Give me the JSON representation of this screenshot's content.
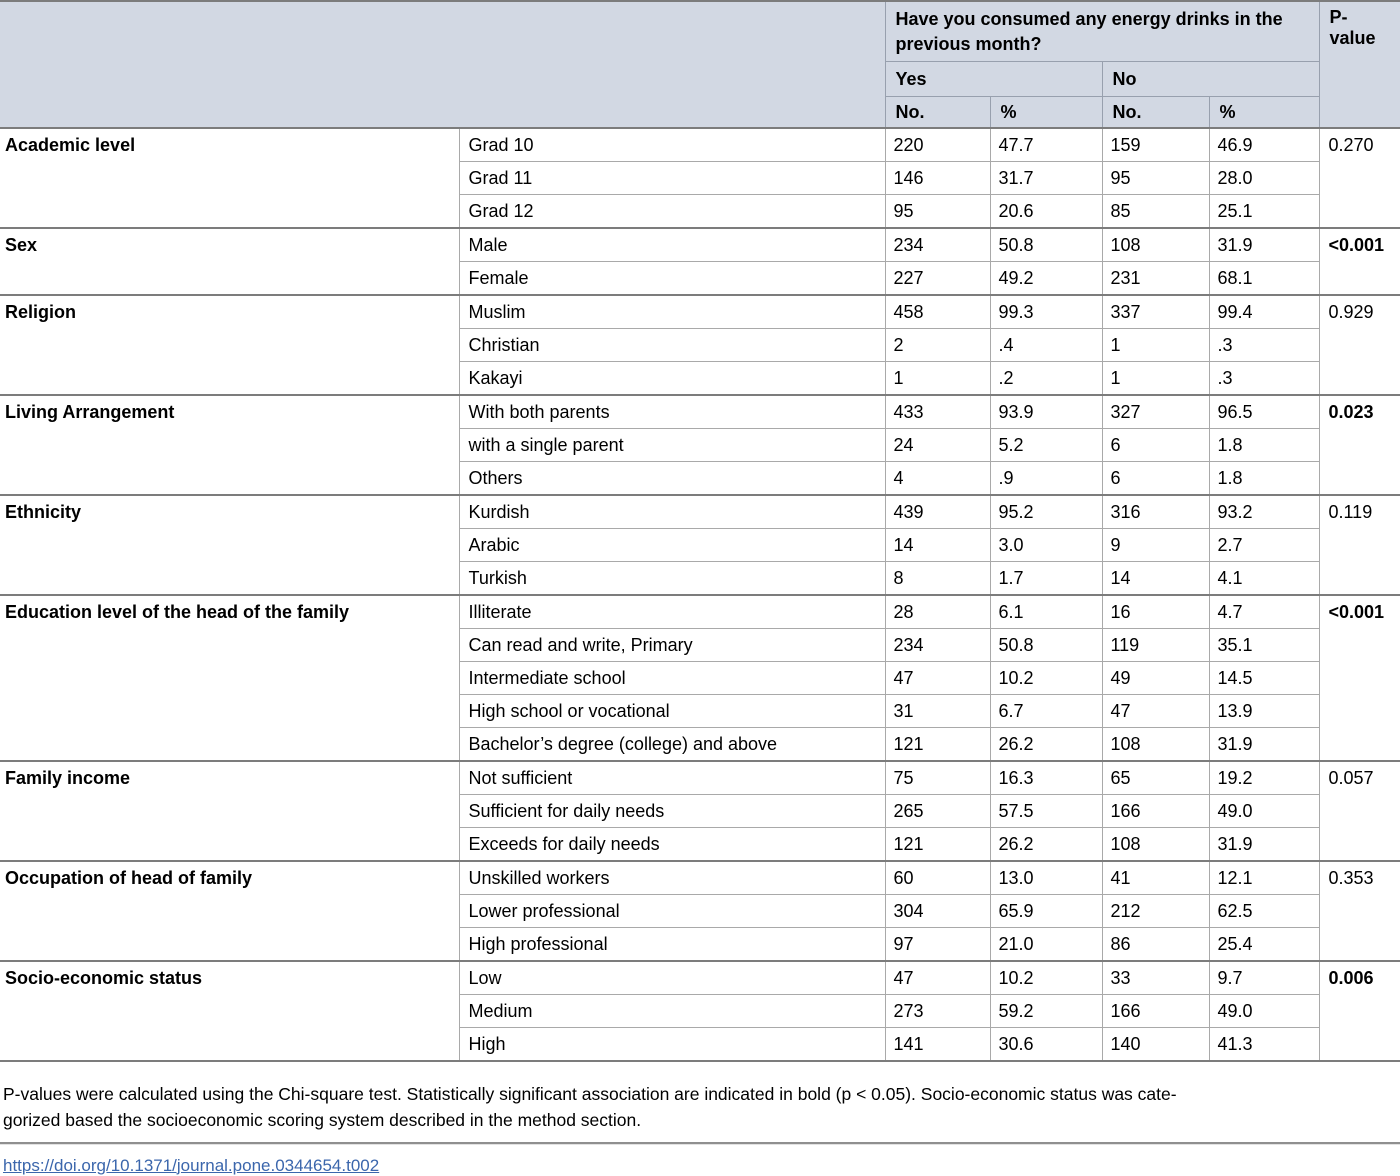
{
  "colors": {
    "header_bg": "#d2d8e3",
    "link_color": "#3b66ac"
  },
  "table": {
    "question_header": "Have you consumed any energy drinks in the previous month?",
    "pvalue_header": "P-value",
    "yes_label": "Yes",
    "no_label": "No",
    "count_label": "No.",
    "percent_label": "%",
    "groups": [
      {
        "category": "Academic level",
        "p_value": "0.270",
        "p_bold": false,
        "rows": [
          {
            "label": "Grad 10",
            "yes_n": "220",
            "yes_pct": "47.7",
            "no_n": "159",
            "no_pct": "46.9"
          },
          {
            "label": "Grad 11",
            "yes_n": "146",
            "yes_pct": "31.7",
            "no_n": "95",
            "no_pct": "28.0"
          },
          {
            "label": "Grad 12",
            "yes_n": "95",
            "yes_pct": "20.6",
            "no_n": "85",
            "no_pct": "25.1"
          }
        ]
      },
      {
        "category": "Sex",
        "p_value": "<0.001",
        "p_bold": true,
        "rows": [
          {
            "label": "Male",
            "yes_n": "234",
            "yes_pct": "50.8",
            "no_n": "108",
            "no_pct": "31.9"
          },
          {
            "label": "Female",
            "yes_n": "227",
            "yes_pct": "49.2",
            "no_n": "231",
            "no_pct": "68.1"
          }
        ]
      },
      {
        "category": "Religion",
        "p_value": "0.929",
        "p_bold": false,
        "rows": [
          {
            "label": "Muslim",
            "yes_n": "458",
            "yes_pct": "99.3",
            "no_n": "337",
            "no_pct": "99.4"
          },
          {
            "label": "Christian",
            "yes_n": "2",
            "yes_pct": ".4",
            "no_n": "1",
            "no_pct": ".3"
          },
          {
            "label": "Kakayi",
            "yes_n": "1",
            "yes_pct": ".2",
            "no_n": "1",
            "no_pct": ".3"
          }
        ]
      },
      {
        "category": "Living Arrangement",
        "p_value": "0.023",
        "p_bold": true,
        "rows": [
          {
            "label": "With both parents",
            "yes_n": "433",
            "yes_pct": "93.9",
            "no_n": "327",
            "no_pct": "96.5"
          },
          {
            "label": "with a single parent",
            "yes_n": "24",
            "yes_pct": "5.2",
            "no_n": "6",
            "no_pct": "1.8"
          },
          {
            "label": "Others",
            "yes_n": "4",
            "yes_pct": ".9",
            "no_n": "6",
            "no_pct": "1.8"
          }
        ]
      },
      {
        "category": "Ethnicity",
        "p_value": "0.119",
        "p_bold": false,
        "rows": [
          {
            "label": "Kurdish",
            "yes_n": "439",
            "yes_pct": "95.2",
            "no_n": "316",
            "no_pct": "93.2"
          },
          {
            "label": "Arabic",
            "yes_n": "14",
            "yes_pct": "3.0",
            "no_n": "9",
            "no_pct": "2.7"
          },
          {
            "label": "Turkish",
            "yes_n": "8",
            "yes_pct": "1.7",
            "no_n": "14",
            "no_pct": "4.1"
          }
        ]
      },
      {
        "category": "Education level of the head of the family",
        "p_value": "<0.001",
        "p_bold": true,
        "rows": [
          {
            "label": "Illiterate",
            "yes_n": "28",
            "yes_pct": "6.1",
            "no_n": "16",
            "no_pct": "4.7"
          },
          {
            "label": "Can read and write, Primary",
            "yes_n": "234",
            "yes_pct": "50.8",
            "no_n": "119",
            "no_pct": "35.1"
          },
          {
            "label": "Intermediate school",
            "yes_n": "47",
            "yes_pct": "10.2",
            "no_n": "49",
            "no_pct": "14.5"
          },
          {
            "label": "High school or vocational",
            "yes_n": "31",
            "yes_pct": "6.7",
            "no_n": "47",
            "no_pct": "13.9"
          },
          {
            "label": "Bachelor’s degree (college) and above",
            "yes_n": "121",
            "yes_pct": "26.2",
            "no_n": "108",
            "no_pct": "31.9"
          }
        ]
      },
      {
        "category": "Family income",
        "p_value": "0.057",
        "p_bold": false,
        "rows": [
          {
            "label": "Not sufficient",
            "yes_n": "75",
            "yes_pct": "16.3",
            "no_n": "65",
            "no_pct": "19.2"
          },
          {
            "label": "Sufficient for daily needs",
            "yes_n": "265",
            "yes_pct": "57.5",
            "no_n": "166",
            "no_pct": "49.0"
          },
          {
            "label": "Exceeds for daily needs",
            "yes_n": "121",
            "yes_pct": "26.2",
            "no_n": "108",
            "no_pct": "31.9"
          }
        ]
      },
      {
        "category": "Occupation of head of family",
        "p_value": "0.353",
        "p_bold": false,
        "rows": [
          {
            "label": "Unskilled workers",
            "yes_n": "60",
            "yes_pct": "13.0",
            "no_n": "41",
            "no_pct": "12.1"
          },
          {
            "label": "Lower professional",
            "yes_n": "304",
            "yes_pct": "65.9",
            "no_n": "212",
            "no_pct": "62.5"
          },
          {
            "label": "High professional",
            "yes_n": "97",
            "yes_pct": "21.0",
            "no_n": "86",
            "no_pct": "25.4"
          }
        ]
      },
      {
        "category": "Socio-economic status",
        "p_value": "0.006",
        "p_bold": true,
        "rows": [
          {
            "label": "Low",
            "yes_n": "47",
            "yes_pct": "10.2",
            "no_n": "33",
            "no_pct": "9.7"
          },
          {
            "label": "Medium",
            "yes_n": "273",
            "yes_pct": "59.2",
            "no_n": "166",
            "no_pct": "49.0"
          },
          {
            "label": "High",
            "yes_n": "141",
            "yes_pct": "30.6",
            "no_n": "140",
            "no_pct": "41.3"
          }
        ]
      }
    ]
  },
  "footnote": {
    "line1": "P-values were calculated using the Chi-square test. Statistically significant association are indicated in bold (p < 0.05). Socio-economic status was cate-",
    "line2": "gorized based the socioeconomic scoring system described in the method section."
  },
  "doi": {
    "link_text": "https://doi.org/10.1371/journal.pone.0344654.t002"
  }
}
